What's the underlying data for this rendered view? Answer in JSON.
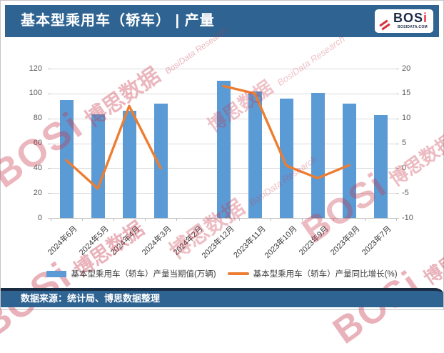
{
  "header": {
    "title": "基本型乘用车（轿车） | 产量",
    "logo": {
      "brand_prefix": "BOS",
      "brand_suffix": "i",
      "site": "BOSIDATA.COM"
    }
  },
  "footer": {
    "source_note": "数据来源：统计局、博思数据整理"
  },
  "watermark": {
    "brand": "BOSi",
    "brand_cn": "博思数据",
    "research": "BosiData Research"
  },
  "colors": {
    "header_blue": "#2F6492",
    "footer_blue": "#2F6492",
    "footer_edge_navy": "#1A2C42",
    "bar_blue": "#5B9BD5",
    "line_orange": "#ED7D31",
    "gridline_gray": "#DADADA",
    "axis_text_gray": "#595959",
    "watermark_red": "#C8374B",
    "logo_navy": "#1D2B49",
    "logo_red": "#DF3A45"
  },
  "chart_data": {
    "type": "bar+line",
    "title": "基本型乘用车（轿车） | 产量",
    "categories": [
      "2024年6月",
      "2024年5月",
      "2024年4月",
      "2024年3月",
      "2024年2月",
      "2023年12月",
      "2023年11月",
      "2023年10月",
      "2023年9月",
      "2023年8月",
      "2023年7月"
    ],
    "series": [
      {
        "name": "基本型乘用车（轿车）产量当期值(万辆)",
        "type": "bar",
        "axis": "left",
        "color": "#5B9BD5",
        "values": [
          95,
          83.5,
          86,
          92,
          null,
          110.5,
          101.5,
          96,
          100.5,
          92,
          82.5
        ]
      },
      {
        "name": "基本型乘用车（轿车）产量同比增长(%)",
        "type": "line",
        "axis": "right",
        "color": "#ED7D31",
        "values": [
          1.6,
          -4.1,
          12.5,
          0,
          null,
          16.5,
          15,
          0.5,
          -2,
          0.6,
          null
        ]
      }
    ],
    "left_axis": {
      "min": 0,
      "max": 120,
      "ticks": [
        0,
        20,
        40,
        60,
        80,
        100,
        120
      ]
    },
    "right_axis": {
      "min": -10,
      "max": 20,
      "ticks": [
        -10,
        -5,
        0,
        5,
        10,
        15,
        20
      ]
    },
    "grid": true,
    "legend_position": "bottom"
  }
}
